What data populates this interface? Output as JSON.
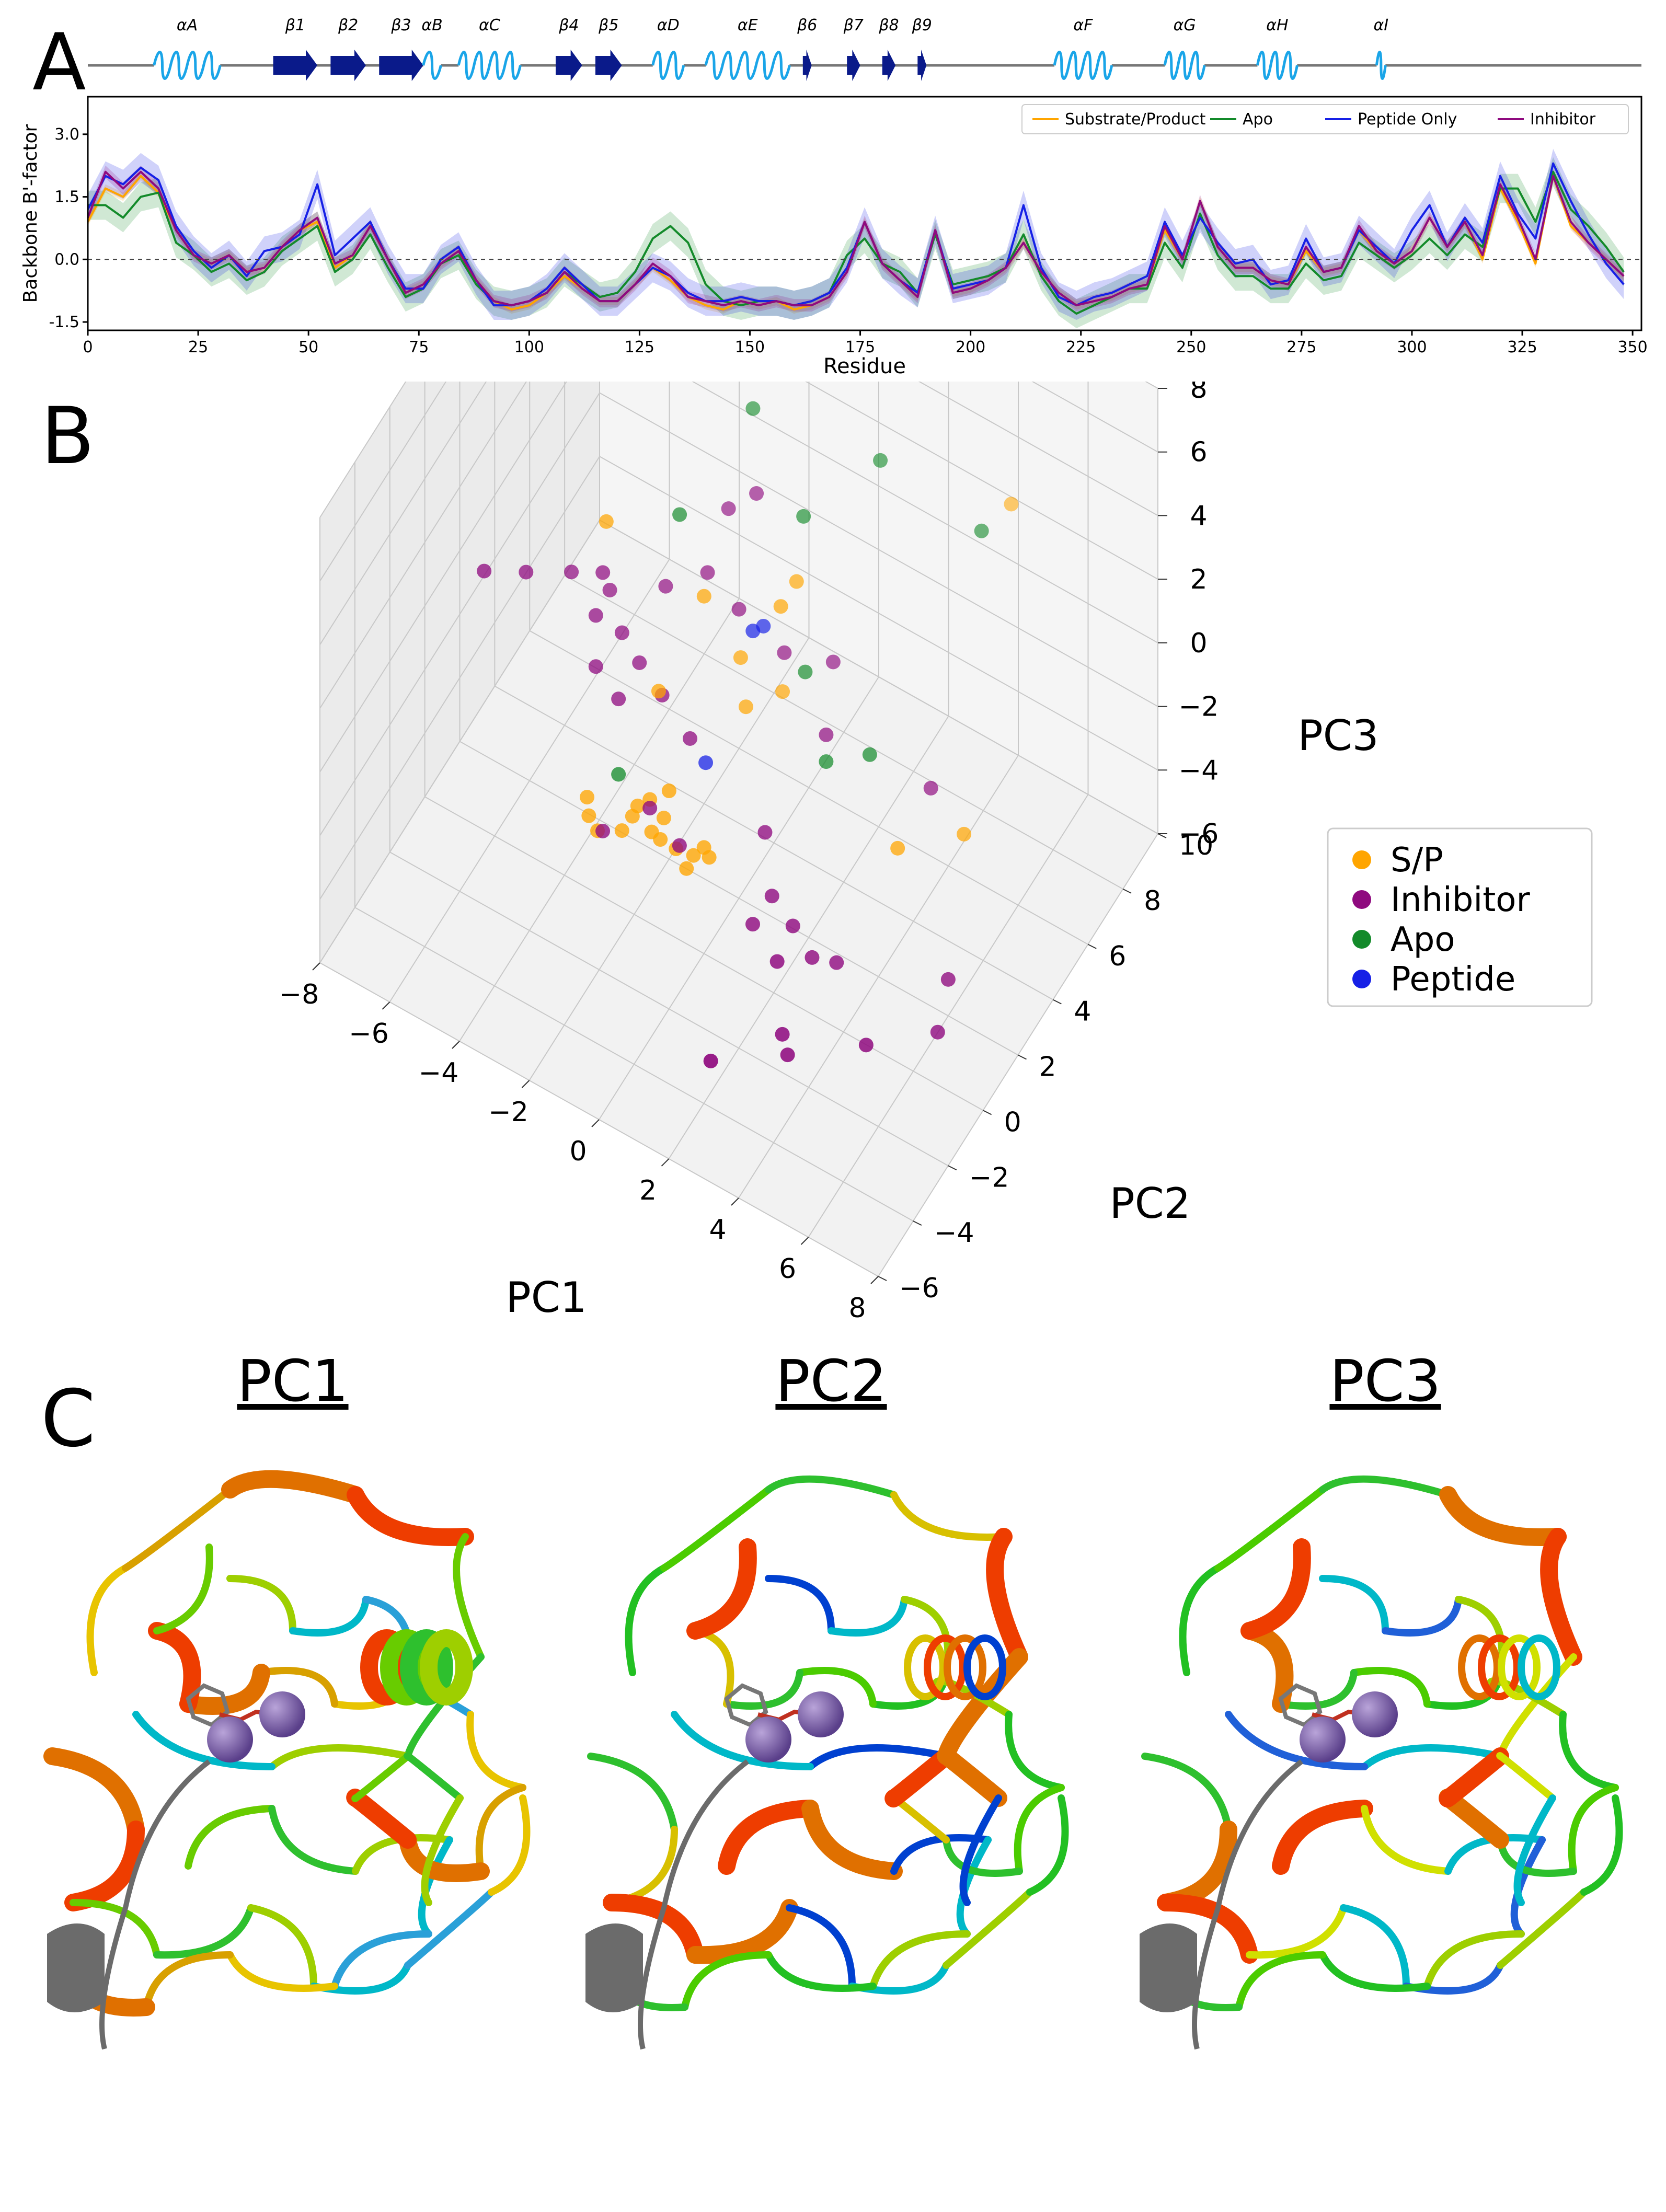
{
  "panel_labels": {
    "a": "A",
    "b": "B",
    "c": "C"
  },
  "panel_c_titles": [
    "PC1",
    "PC2",
    "PC3"
  ],
  "colors": {
    "helix": "#1aa5e8",
    "strand": "#0a1a8a",
    "substrate_product": "#ffa500",
    "apo": "#138a2a",
    "peptide_only": "#1620e6",
    "inhibitor": "#8f0a7f"
  },
  "chart_data": [
    {
      "type": "line",
      "panel": "A",
      "title": "",
      "xlabel": "Residue",
      "ylabel": "Backbone B'-factor",
      "xlim": [
        0,
        352
      ],
      "ylim": [
        -1.7,
        3.9
      ],
      "xticks": [
        "0",
        "25",
        "50",
        "75",
        "100",
        "125",
        "150",
        "175",
        "200",
        "225",
        "250",
        "275",
        "300",
        "325",
        "350"
      ],
      "yticks": [
        "-1.5",
        "0.0",
        "1.5",
        "3.0"
      ],
      "reference_line_y": 0,
      "legend_position": "top-right",
      "secondary_structure": [
        {
          "label": "αA",
          "type": "helix",
          "start": 15,
          "end": 30
        },
        {
          "label": "β1",
          "type": "strand",
          "start": 42,
          "end": 52
        },
        {
          "label": "β2",
          "type": "strand",
          "start": 55,
          "end": 63
        },
        {
          "label": "β3",
          "type": "strand",
          "start": 66,
          "end": 76
        },
        {
          "label": "αB",
          "type": "helix",
          "start": 76,
          "end": 80
        },
        {
          "label": "αC",
          "type": "helix",
          "start": 84,
          "end": 98
        },
        {
          "label": "β4",
          "type": "strand",
          "start": 106,
          "end": 112
        },
        {
          "label": "β5",
          "type": "strand",
          "start": 115,
          "end": 121
        },
        {
          "label": "αD",
          "type": "helix",
          "start": 128,
          "end": 135
        },
        {
          "label": "αE",
          "type": "helix",
          "start": 140,
          "end": 159
        },
        {
          "label": "β6",
          "type": "strand",
          "start": 162,
          "end": 164
        },
        {
          "label": "β7",
          "type": "strand",
          "start": 172,
          "end": 175
        },
        {
          "label": "β8",
          "type": "strand",
          "start": 180,
          "end": 183
        },
        {
          "label": "β9",
          "type": "strand",
          "start": 188,
          "end": 190
        },
        {
          "label": "αF",
          "type": "helix",
          "start": 219,
          "end": 232
        },
        {
          "label": "αG",
          "type": "helix",
          "start": 244,
          "end": 253
        },
        {
          "label": "αH",
          "type": "helix",
          "start": 265,
          "end": 274
        },
        {
          "label": "αI",
          "type": "helix",
          "start": 292,
          "end": 294
        }
      ],
      "x": [
        0,
        4,
        8,
        12,
        16,
        20,
        24,
        28,
        32,
        36,
        40,
        44,
        48,
        52,
        56,
        60,
        64,
        68,
        72,
        76,
        80,
        84,
        88,
        92,
        96,
        100,
        104,
        108,
        112,
        116,
        120,
        124,
        128,
        132,
        136,
        140,
        144,
        148,
        152,
        156,
        160,
        164,
        168,
        172,
        176,
        180,
        184,
        188,
        192,
        196,
        200,
        204,
        208,
        212,
        216,
        220,
        224,
        228,
        232,
        236,
        240,
        244,
        248,
        252,
        256,
        260,
        264,
        268,
        272,
        276,
        280,
        284,
        288,
        292,
        296,
        300,
        304,
        308,
        312,
        316,
        320,
        324,
        328,
        332,
        336,
        340,
        344,
        348
      ],
      "series": [
        {
          "name": "Substrate/Product",
          "values": [
            0.9,
            1.7,
            1.5,
            2.0,
            1.6,
            0.7,
            0.1,
            -0.1,
            0.1,
            -0.3,
            -0.2,
            0.3,
            0.7,
            0.9,
            -0.2,
            0.1,
            0.8,
            0.0,
            -0.8,
            -0.6,
            -0.1,
            0.2,
            -0.5,
            -1.0,
            -1.2,
            -1.1,
            -0.8,
            -0.4,
            -0.7,
            -1.0,
            -1.0,
            -0.6,
            -0.2,
            -0.5,
            -0.9,
            -1.1,
            -1.2,
            -1.0,
            -1.1,
            -1.0,
            -1.2,
            -1.1,
            -0.9,
            -0.3,
            0.9,
            -0.1,
            -0.5,
            -0.9,
            0.7,
            -0.8,
            -0.7,
            -0.5,
            -0.2,
            0.4,
            -0.3,
            -0.8,
            -1.1,
            -1.0,
            -0.9,
            -0.7,
            -0.6,
            0.7,
            0.0,
            1.4,
            0.3,
            -0.2,
            -0.2,
            -0.5,
            -0.6,
            0.2,
            -0.3,
            -0.2,
            0.7,
            0.2,
            -0.1,
            0.2,
            1.0,
            0.3,
            0.9,
            0.0,
            1.7,
            0.9,
            -0.1,
            2.0,
            0.8,
            0.4,
            0.0,
            -0.4
          ]
        },
        {
          "name": "Apo",
          "values": [
            1.3,
            1.3,
            1.0,
            1.5,
            1.6,
            0.4,
            0.1,
            -0.3,
            -0.1,
            -0.5,
            -0.3,
            0.2,
            0.5,
            0.8,
            -0.3,
            0.0,
            0.6,
            -0.2,
            -0.9,
            -0.7,
            -0.1,
            0.1,
            -0.6,
            -1.0,
            -1.1,
            -1.0,
            -0.8,
            -0.3,
            -0.6,
            -0.9,
            -0.8,
            -0.3,
            0.5,
            0.8,
            0.4,
            -0.6,
            -1.0,
            -1.1,
            -1.0,
            -1.0,
            -1.1,
            -1.0,
            -0.8,
            0.1,
            0.5,
            -0.1,
            -0.3,
            -0.8,
            0.6,
            -0.6,
            -0.5,
            -0.4,
            -0.2,
            0.6,
            -0.4,
            -1.0,
            -1.3,
            -1.1,
            -0.9,
            -0.7,
            -0.7,
            0.4,
            -0.2,
            1.1,
            0.1,
            -0.4,
            -0.4,
            -0.7,
            -0.7,
            -0.1,
            -0.5,
            -0.4,
            0.4,
            0.1,
            -0.2,
            0.1,
            0.5,
            0.1,
            0.6,
            0.3,
            1.7,
            1.7,
            0.9,
            2.1,
            1.2,
            0.8,
            0.3,
            -0.3
          ]
        },
        {
          "name": "Peptide Only",
          "values": [
            1.2,
            2.0,
            1.8,
            2.2,
            1.9,
            0.8,
            0.2,
            -0.2,
            0.1,
            -0.4,
            0.2,
            0.3,
            0.6,
            1.8,
            0.1,
            0.5,
            0.9,
            0.0,
            -0.7,
            -0.7,
            0.0,
            0.3,
            -0.5,
            -1.1,
            -1.1,
            -1.0,
            -0.7,
            -0.2,
            -0.6,
            -1.0,
            -1.0,
            -0.6,
            -0.2,
            -0.4,
            -0.8,
            -1.0,
            -1.0,
            -0.9,
            -1.0,
            -1.0,
            -1.1,
            -1.0,
            -0.8,
            -0.2,
            0.9,
            -0.1,
            -0.5,
            -0.8,
            0.7,
            -0.7,
            -0.6,
            -0.5,
            -0.2,
            1.3,
            -0.2,
            -0.9,
            -1.1,
            -0.9,
            -0.8,
            -0.6,
            -0.4,
            0.9,
            0.1,
            1.0,
            0.4,
            -0.1,
            0.0,
            -0.6,
            -0.5,
            0.5,
            -0.3,
            -0.2,
            0.7,
            0.3,
            -0.1,
            0.7,
            1.3,
            0.3,
            1.0,
            0.4,
            2.0,
            1.1,
            0.5,
            2.3,
            1.4,
            0.6,
            -0.1,
            -0.6
          ]
        },
        {
          "name": "Inhibitor",
          "values": [
            1.0,
            2.1,
            1.7,
            2.1,
            1.7,
            0.7,
            0.1,
            -0.1,
            0.1,
            -0.3,
            -0.2,
            0.3,
            0.7,
            1.0,
            -0.1,
            0.1,
            0.8,
            0.0,
            -0.8,
            -0.6,
            -0.1,
            0.2,
            -0.5,
            -1.0,
            -1.1,
            -1.0,
            -0.8,
            -0.3,
            -0.7,
            -1.0,
            -1.0,
            -0.6,
            -0.1,
            -0.4,
            -0.9,
            -1.0,
            -1.1,
            -1.0,
            -1.1,
            -1.0,
            -1.1,
            -1.1,
            -0.9,
            -0.3,
            0.9,
            -0.1,
            -0.5,
            -0.9,
            0.7,
            -0.8,
            -0.7,
            -0.5,
            -0.2,
            0.4,
            -0.3,
            -0.8,
            -1.1,
            -1.0,
            -0.9,
            -0.7,
            -0.6,
            0.8,
            0.0,
            1.4,
            0.3,
            -0.2,
            -0.2,
            -0.5,
            -0.6,
            0.3,
            -0.3,
            -0.2,
            0.8,
            0.2,
            -0.1,
            0.2,
            1.0,
            0.3,
            0.9,
            0.1,
            1.8,
            1.0,
            0.0,
            2.0,
            0.9,
            0.4,
            0.0,
            -0.4
          ]
        }
      ],
      "band_halfwidth": {
        "Apo": 0.35,
        "Peptide Only": 0.35,
        "Inhibitor": 0.15,
        "Substrate/Product": 0.1
      }
    },
    {
      "type": "scatter",
      "panel": "B",
      "title": "",
      "xlabel": "PC1",
      "ylabel": "PC2",
      "zlabel": "PC3",
      "xlim": [
        -8,
        8
      ],
      "ylim": [
        -6,
        10
      ],
      "zlim": [
        -6,
        8
      ],
      "xticks": [
        "−8",
        "−6",
        "−4",
        "−2",
        "0",
        "2",
        "4",
        "6",
        "8"
      ],
      "yticks": [
        "−6",
        "−4",
        "−2",
        "0",
        "2",
        "4",
        "6",
        "8",
        "10"
      ],
      "zticks": [
        "−6",
        "−4",
        "−2",
        "0",
        "2",
        "4",
        "6",
        "8"
      ],
      "legend_position": "right",
      "legend": [
        "S/P",
        "Inhibitor",
        "Apo",
        "Peptide"
      ],
      "series": [
        {
          "name": "S/P",
          "points": [
            [
              -3.8,
              2.0,
              3.5
            ],
            [
              5.0,
              7.6,
              4.6
            ],
            [
              -1.5,
              3.0,
              1.7
            ],
            [
              0.6,
              3.2,
              2.5
            ],
            [
              0.6,
              4.1,
              2.5
            ],
            [
              -0.5,
              3.1,
              0.3
            ],
            [
              0.5,
              3.5,
              -0.5
            ],
            [
              -0.2,
              2.8,
              -0.8
            ],
            [
              -2.0,
              1.4,
              -0.2
            ],
            [
              -1.0,
              0.0,
              -1.5
            ],
            [
              -1.3,
              0.3,
              -2.8
            ],
            [
              -1.5,
              0.0,
              -3.1
            ],
            [
              -1.3,
              0.1,
              -3.3
            ],
            [
              -0.8,
              0.0,
              -3.2
            ],
            [
              -0.3,
              0.0,
              -3.1
            ],
            [
              -0.4,
              -0.2,
              -3.4
            ],
            [
              -0.1,
              0.2,
              -2.9
            ],
            [
              0.1,
              0.1,
              -3.0
            ],
            [
              -3.0,
              -0.1,
              -3.9
            ],
            [
              -3.3,
              0.0,
              -3.7
            ],
            [
              -3.5,
              0.3,
              -3.5
            ],
            [
              -2.2,
              0.3,
              -3.3
            ],
            [
              -2.4,
              0.1,
              -3.7
            ],
            [
              -2.1,
              0.4,
              -3.0
            ],
            [
              -1.8,
              0.5,
              -2.7
            ],
            [
              4.9,
              1.3,
              -0.8
            ],
            [
              6.2,
              2.5,
              -0.6
            ]
          ]
        },
        {
          "name": "Inhibitor",
          "points": [
            [
              -6.7,
              0.8,
              1.2
            ],
            [
              -5.8,
              1.4,
              1.2
            ],
            [
              -4.8,
              2.0,
              1.3
            ],
            [
              -4.0,
              2.2,
              1.6
            ],
            [
              -4.0,
              2.6,
              0.7
            ],
            [
              -2.7,
              3.2,
              1.1
            ],
            [
              -1.6,
              4.6,
              3.0
            ],
            [
              -1.0,
              5.0,
              3.5
            ],
            [
              -1.7,
              3.6,
              1.8
            ],
            [
              -0.8,
              3.6,
              1.2
            ],
            [
              0.4,
              3.8,
              0.4
            ],
            [
              1.6,
              4.2,
              0.5
            ],
            [
              -4.0,
              1.8,
              0.6
            ],
            [
              -3.3,
              1.9,
              0.4
            ],
            [
              -2.7,
              1.7,
              0.0
            ],
            [
              -3.7,
              1.2,
              -0.3
            ],
            [
              -2.0,
              1.6,
              -0.5
            ],
            [
              -3.0,
              1.1,
              -0.8
            ],
            [
              -1.0,
              1.2,
              -0.9
            ],
            [
              2.0,
              3.0,
              -0.5
            ],
            [
              1.5,
              0.5,
              -1.7
            ],
            [
              4.8,
              3.4,
              -0.8
            ],
            [
              -1.6,
              0.1,
              -2.5
            ],
            [
              -0.6,
              -0.2,
              -2.8
            ],
            [
              2.2,
              -0.5,
              -2.4
            ],
            [
              2.0,
              -1.2,
              -2.8
            ],
            [
              3.0,
              -0.9,
              -2.5
            ],
            [
              3.7,
              -1.2,
              -2.8
            ],
            [
              4.2,
              -0.8,
              -3.0
            ],
            [
              3.1,
              -2.0,
              -2.6
            ],
            [
              7.0,
              0.0,
              -2.5
            ],
            [
              7.1,
              -0.8,
              -3.4
            ],
            [
              5.8,
              -2.3,
              -3.3
            ],
            [
              3.8,
              -3.1,
              -3.5
            ],
            [
              4.1,
              -3.4,
              -3.7
            ],
            [
              2.6,
              -4.8,
              -3.6
            ],
            [
              -2.8,
              -0.2,
              -3.7
            ]
          ]
        },
        {
          "name": "Apo",
          "points": [
            [
              -1.4,
              5.6,
              5.4
            ],
            [
              0.6,
              4.5,
              4.2
            ],
            [
              -2.3,
              3.2,
              3.6
            ],
            [
              2.2,
              5.7,
              5.9
            ],
            [
              4.9,
              6.1,
              5.0
            ],
            [
              1.1,
              3.6,
              0.4
            ],
            [
              2.4,
              2.2,
              -0.4
            ],
            [
              3.4,
              2.7,
              0.0
            ],
            [
              -2.8,
              0.7,
              -2.7
            ]
          ]
        },
        {
          "name": "Peptide",
          "points": [
            [
              -0.1,
              3.6,
              1.1
            ],
            [
              -0.3,
              3.4,
              1.0
            ],
            [
              -0.6,
              1.3,
              -1.5
            ]
          ]
        }
      ]
    }
  ]
}
